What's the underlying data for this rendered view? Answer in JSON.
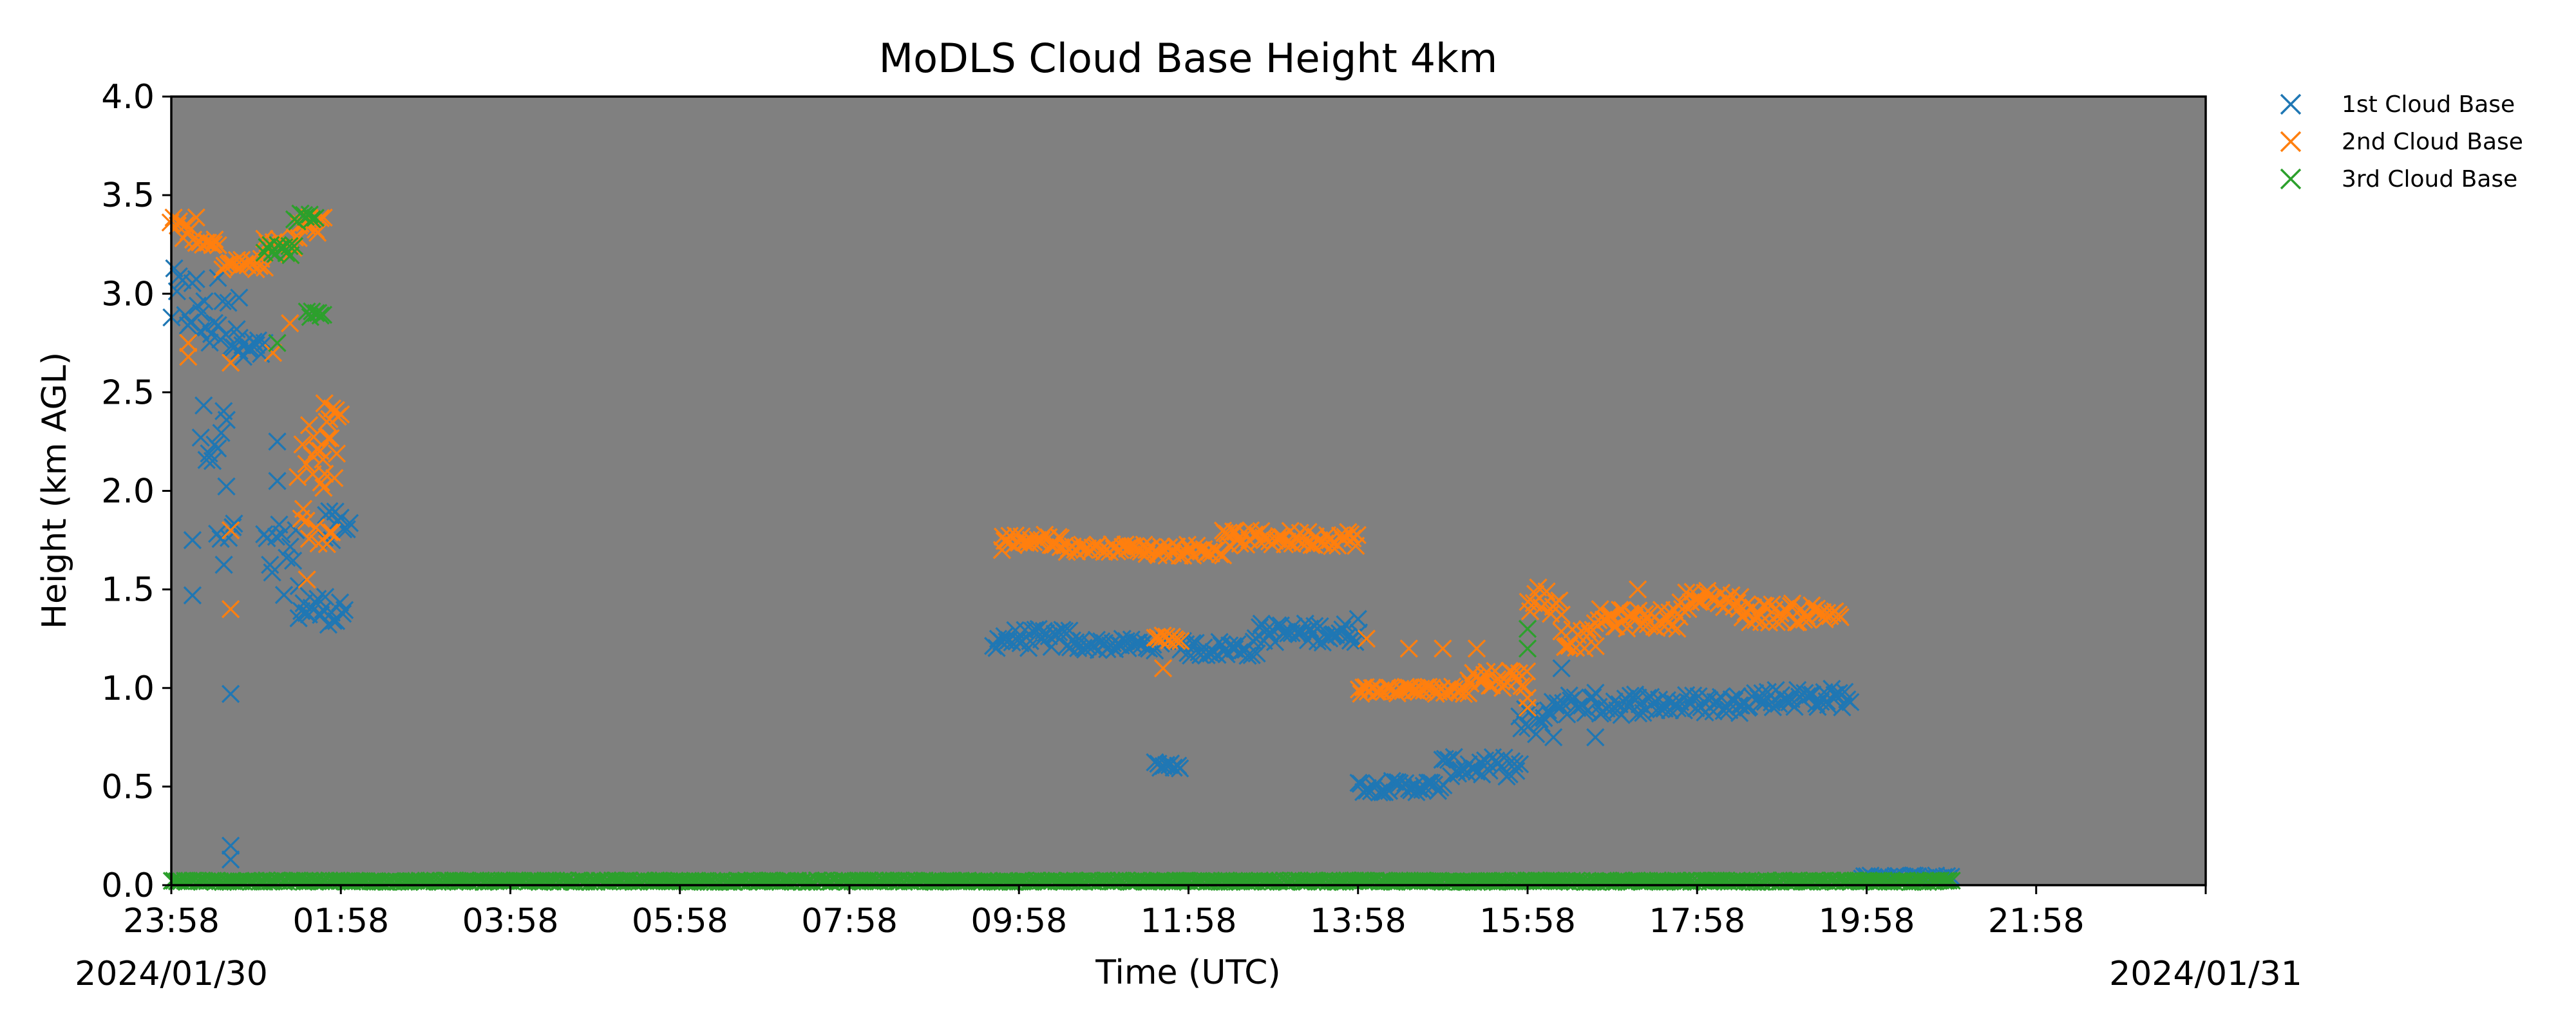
{
  "chart_data": {
    "type": "scatter",
    "title": "MoDLS Cloud Base Height 4km",
    "xlabel": "Time (UTC)",
    "ylabel": "Height (km AGL)",
    "x_unit": "hours after 2024/01/30 23:58 UTC",
    "xlim": [
      0,
      24
    ],
    "ylim": [
      0,
      4.0
    ],
    "x_tick_labels": [
      "23:58",
      "01:58",
      "03:58",
      "05:58",
      "07:58",
      "09:58",
      "11:58",
      "13:58",
      "15:58",
      "17:58",
      "19:58",
      "21:58"
    ],
    "x_tick_values": [
      0,
      2,
      4,
      6,
      8,
      10,
      12,
      14,
      16,
      18,
      20,
      22
    ],
    "y_ticks": [
      "0.0",
      "0.5",
      "1.0",
      "1.5",
      "2.0",
      "2.5",
      "3.0",
      "3.5",
      "4.0"
    ],
    "date_labels": [
      "2024/01/30",
      "2024/01/31"
    ],
    "plot_background": "#808080",
    "grid": false,
    "legend_position": "outside-top-right",
    "marker": "x",
    "series": [
      {
        "name": "1st Cloud Base",
        "color": "#1f77b4",
        "clusters": [
          {
            "x0": 0.0,
            "x1": 0.35,
            "y": 2.95,
            "spread": 0.18
          },
          {
            "x0": 0.35,
            "x1": 0.8,
            "y": 2.85,
            "spread": 0.15
          },
          {
            "x0": 0.35,
            "x1": 0.65,
            "y": 2.3,
            "spread": 0.15
          },
          {
            "x0": 0.55,
            "x1": 0.75,
            "y": 1.75,
            "spread": 0.3
          },
          {
            "x0": 0.8,
            "x1": 1.1,
            "y": 2.72,
            "spread": 0.05
          },
          {
            "x0": 1.1,
            "x1": 1.5,
            "y": 1.65,
            "spread": 0.18
          },
          {
            "x0": 1.5,
            "x1": 2.05,
            "y": 1.4,
            "spread": 0.08
          },
          {
            "x0": 1.8,
            "x1": 2.1,
            "y": 1.8,
            "spread": 0.1
          },
          {
            "x0": 9.7,
            "x1": 10.6,
            "y": 1.25,
            "spread": 0.05
          },
          {
            "x0": 10.6,
            "x1": 11.7,
            "y": 1.22,
            "spread": 0.03
          },
          {
            "x0": 11.6,
            "x1": 11.9,
            "y": 0.61,
            "spread": 0.02
          },
          {
            "x0": 11.9,
            "x1": 12.8,
            "y": 1.2,
            "spread": 0.04
          },
          {
            "x0": 12.8,
            "x1": 14.0,
            "y": 1.28,
            "spread": 0.05
          },
          {
            "x0": 14.0,
            "x1": 15.0,
            "y": 0.5,
            "spread": 0.03
          },
          {
            "x0": 15.0,
            "x1": 15.9,
            "y": 0.6,
            "spread": 0.05
          },
          {
            "x0": 15.9,
            "x1": 16.3,
            "y": 0.82,
            "spread": 0.08
          },
          {
            "x0": 16.3,
            "x1": 17.3,
            "y": 0.92,
            "spread": 0.06
          },
          {
            "x0": 17.3,
            "x1": 18.5,
            "y": 0.92,
            "spread": 0.05
          },
          {
            "x0": 18.5,
            "x1": 19.8,
            "y": 0.95,
            "spread": 0.05
          },
          {
            "x0": 19.95,
            "x1": 21.0,
            "y": 0.04,
            "spread": 0.01
          }
        ],
        "outliers": [
          [
            0.25,
            1.75
          ],
          [
            0.25,
            1.47
          ],
          [
            0.7,
            0.97
          ],
          [
            0.7,
            0.2
          ],
          [
            0.7,
            0.13
          ],
          [
            0.85,
            2.68
          ],
          [
            1.25,
            2.25
          ],
          [
            1.25,
            2.05
          ],
          [
            0.55,
            3.08
          ],
          [
            0.8,
            2.98
          ],
          [
            14.0,
            1.35
          ],
          [
            16.8,
            0.75
          ],
          [
            16.4,
            1.1
          ]
        ]
      },
      {
        "name": "2nd Cloud Base",
        "color": "#ff7f0e",
        "clusters": [
          {
            "x0": 0.0,
            "x1": 0.3,
            "y": 3.33,
            "spread": 0.06
          },
          {
            "x0": 0.3,
            "x1": 0.55,
            "y": 3.25,
            "spread": 0.03
          },
          {
            "x0": 0.6,
            "x1": 1.1,
            "y": 3.15,
            "spread": 0.03
          },
          {
            "x0": 1.1,
            "x1": 1.5,
            "y": 3.25,
            "spread": 0.05
          },
          {
            "x0": 1.5,
            "x1": 1.8,
            "y": 3.35,
            "spread": 0.05
          },
          {
            "x0": 1.5,
            "x1": 1.9,
            "y": 1.9,
            "spread": 0.2
          },
          {
            "x0": 1.55,
            "x1": 1.95,
            "y": 2.2,
            "spread": 0.15
          },
          {
            "x0": 1.8,
            "x1": 2.0,
            "y": 2.4,
            "spread": 0.06
          },
          {
            "x0": 9.8,
            "x1": 10.5,
            "y": 1.75,
            "spread": 0.03
          },
          {
            "x0": 10.5,
            "x1": 11.5,
            "y": 1.71,
            "spread": 0.02
          },
          {
            "x0": 11.5,
            "x1": 12.4,
            "y": 1.7,
            "spread": 0.03
          },
          {
            "x0": 12.4,
            "x1": 14.0,
            "y": 1.76,
            "spread": 0.04
          },
          {
            "x0": 11.6,
            "x1": 11.9,
            "y": 1.25,
            "spread": 0.02
          },
          {
            "x0": 14.0,
            "x1": 15.3,
            "y": 0.99,
            "spread": 0.02
          },
          {
            "x0": 15.3,
            "x1": 16.0,
            "y": 1.05,
            "spread": 0.05
          },
          {
            "x0": 16.0,
            "x1": 16.4,
            "y": 1.45,
            "spread": 0.08
          },
          {
            "x0": 16.4,
            "x1": 16.8,
            "y": 1.25,
            "spread": 0.05
          },
          {
            "x0": 16.8,
            "x1": 17.8,
            "y": 1.35,
            "spread": 0.05
          },
          {
            "x0": 17.8,
            "x1": 18.5,
            "y": 1.45,
            "spread": 0.05
          },
          {
            "x0": 18.5,
            "x1": 19.7,
            "y": 1.38,
            "spread": 0.05
          }
        ],
        "outliers": [
          [
            0.2,
            2.75
          ],
          [
            0.2,
            2.68
          ],
          [
            0.7,
            2.65
          ],
          [
            0.7,
            1.8
          ],
          [
            0.7,
            1.4
          ],
          [
            1.2,
            2.7
          ],
          [
            1.4,
            2.85
          ],
          [
            1.6,
            1.55
          ],
          [
            9.8,
            1.7
          ],
          [
            11.7,
            1.1
          ],
          [
            14.1,
            1.25
          ],
          [
            14.6,
            1.2
          ],
          [
            15.0,
            1.2
          ],
          [
            15.4,
            1.2
          ],
          [
            16.0,
            0.95
          ],
          [
            16.0,
            0.9
          ],
          [
            17.3,
            1.5
          ],
          [
            0.5,
            3.25
          ]
        ]
      },
      {
        "name": "3rd Cloud Base",
        "color": "#2ca02c",
        "clusters": [
          {
            "x0": 1.1,
            "x1": 1.45,
            "y": 3.22,
            "spread": 0.03
          },
          {
            "x0": 1.45,
            "x1": 1.7,
            "y": 3.38,
            "spread": 0.03
          },
          {
            "x0": 1.6,
            "x1": 1.8,
            "y": 2.9,
            "spread": 0.02
          },
          {
            "x0": 0.0,
            "x1": 21.0,
            "y": 0.02,
            "spread": 0.004
          }
        ],
        "outliers": [
          [
            1.25,
            2.75
          ],
          [
            16.0,
            1.3
          ],
          [
            16.0,
            1.2
          ]
        ]
      }
    ]
  }
}
